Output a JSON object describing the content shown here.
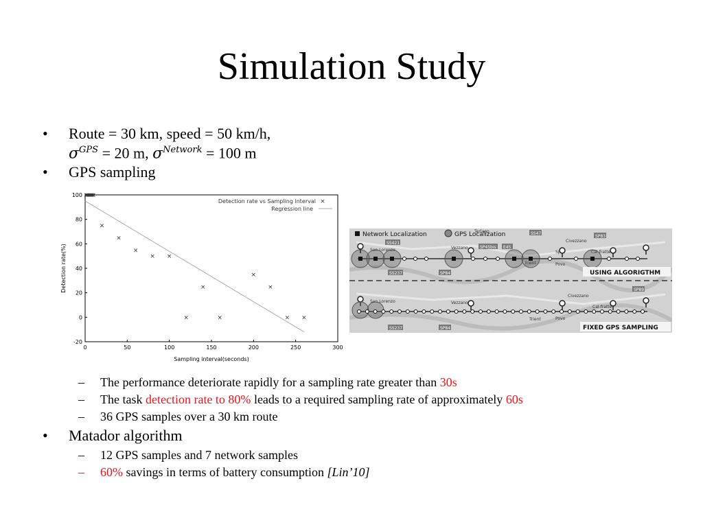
{
  "slide": {
    "title": "Simulation Study",
    "bullets": {
      "b1_line1": "Route = 30 km, speed = 50 km/h,",
      "b1_sigma": "σ",
      "b1_gps_sup": "GPS",
      "b1_eq1": " = 20 m, ",
      "b1_sigma2": "σ",
      "b1_net_sup": "Network",
      "b1_eq2": " = 100 m",
      "b2": "GPS sampling",
      "b2_sub1_text": "The performance deteriorate rapidly for a sampling rate greater than ",
      "b2_sub1_red": "30s",
      "b2_sub2_a": "The task ",
      "b2_sub2_red": "detection rate to 80%",
      "b2_sub2_b": " leads to a required sampling rate of approximately ",
      "b2_sub2_red2": "60s",
      "b2_sub3": "36 GPS samples over a 30 km route",
      "b3": "Matador algorithm",
      "b3_sub1": "12 GPS samples and 7 network samples",
      "b3_sub2_red": "60%",
      "b3_sub2_text": " savings in terms of battery consumption ",
      "b3_sub2_cite": "[Lin’10]",
      "bullet_char": "•",
      "dash_char": "–"
    },
    "colors": {
      "accent_red": "#e8141b"
    }
  },
  "chart_data": {
    "type": "scatter",
    "xlabel": "Sampling interval(seconds)",
    "ylabel": "Detection rate(%)",
    "xlim": [
      0,
      300
    ],
    "ylim": [
      -20,
      100
    ],
    "xticks": [
      0,
      50,
      100,
      150,
      200,
      250,
      300
    ],
    "yticks": [
      -20,
      0,
      20,
      40,
      60,
      80,
      100
    ],
    "legend": [
      "Detection rate vs Sampling interval",
      "Regression line"
    ],
    "legend_position": "top-right",
    "series": [
      {
        "name": "Detection rate vs Sampling interval",
        "x": [
          1,
          2,
          3,
          4,
          5,
          6,
          7,
          8,
          9,
          10,
          20,
          40,
          60,
          80,
          100,
          120,
          140,
          160,
          200,
          220,
          240,
          260
        ],
        "y": [
          100,
          100,
          100,
          100,
          100,
          100,
          100,
          100,
          100,
          100,
          75,
          65,
          55,
          50,
          50,
          0,
          25,
          0,
          35,
          25,
          0,
          0
        ]
      }
    ],
    "regression": {
      "x": [
        0,
        260
      ],
      "y": [
        95,
        -12
      ]
    }
  },
  "map": {
    "legend_network": "Network Localization",
    "legend_gps": "GPS Localization",
    "label_top": "USING ALGORIGTHM",
    "label_bottom": "FIXED GPS SAMPLING",
    "places": [
      "San Lorenzo",
      "Vezzano",
      "Terlago",
      "Trient",
      "Povo",
      "Civezzano",
      "Cal-fratte",
      "Spre"
    ],
    "roads": [
      "SS421",
      "SS237",
      "SP84",
      "SP45bis",
      "E45",
      "SS47",
      "SP83",
      "SP89",
      "SP131",
      "SP85"
    ]
  }
}
